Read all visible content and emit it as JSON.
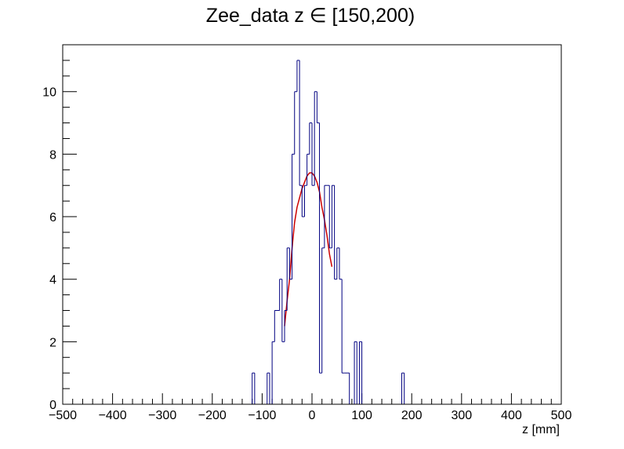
{
  "chart_data": {
    "type": "bar",
    "title": "Zee_data z  ∈ [150,200)",
    "xlabel": "z [mm]",
    "ylabel": "",
    "xlim": [
      -500,
      500
    ],
    "ylim": [
      0,
      11.5
    ],
    "bin_width": 5,
    "x_ticks": [
      -500,
      -400,
      -300,
      -200,
      -100,
      0,
      100,
      200,
      300,
      400,
      500
    ],
    "x_tick_labels": [
      "−500",
      "−400",
      "−300",
      "−200",
      "−100",
      "0",
      "100",
      "200",
      "300",
      "400",
      "500"
    ],
    "y_ticks": [
      0,
      2,
      4,
      6,
      8,
      10
    ],
    "y_tick_labels": [
      "0",
      "2",
      "4",
      "6",
      "8",
      "10"
    ],
    "grid": false,
    "colors": {
      "histogram": "#000080",
      "fit": "#cc0000",
      "axes": "#000000"
    },
    "series": [
      {
        "type": "histogram",
        "bins": [
          {
            "x": -120,
            "y": 1
          },
          {
            "x": -90,
            "y": 1
          },
          {
            "x": -80,
            "y": 2
          },
          {
            "x": -75,
            "y": 3
          },
          {
            "x": -70,
            "y": 3
          },
          {
            "x": -65,
            "y": 4
          },
          {
            "x": -60,
            "y": 2
          },
          {
            "x": -55,
            "y": 3
          },
          {
            "x": -50,
            "y": 5
          },
          {
            "x": -45,
            "y": 4
          },
          {
            "x": -40,
            "y": 8
          },
          {
            "x": -35,
            "y": 10
          },
          {
            "x": -30,
            "y": 11
          },
          {
            "x": -25,
            "y": 7
          },
          {
            "x": -20,
            "y": 6
          },
          {
            "x": -15,
            "y": 7
          },
          {
            "x": -10,
            "y": 8
          },
          {
            "x": -5,
            "y": 9
          },
          {
            "x": 0,
            "y": 7
          },
          {
            "x": 5,
            "y": 10
          },
          {
            "x": 10,
            "y": 9
          },
          {
            "x": 15,
            "y": 1
          },
          {
            "x": 20,
            "y": 5
          },
          {
            "x": 25,
            "y": 7
          },
          {
            "x": 30,
            "y": 7
          },
          {
            "x": 35,
            "y": 5
          },
          {
            "x": 40,
            "y": 7
          },
          {
            "x": 45,
            "y": 4
          },
          {
            "x": 50,
            "y": 5
          },
          {
            "x": 55,
            "y": 4
          },
          {
            "x": 60,
            "y": 1
          },
          {
            "x": 65,
            "y": 1
          },
          {
            "x": 70,
            "y": 1
          },
          {
            "x": 85,
            "y": 2
          },
          {
            "x": 95,
            "y": 2
          },
          {
            "x": 180,
            "y": 1
          }
        ]
      },
      {
        "type": "fit",
        "points": [
          {
            "x": -55,
            "y": 2.5
          },
          {
            "x": -50,
            "y": 3.3
          },
          {
            "x": -45,
            "y": 4.0
          },
          {
            "x": -40,
            "y": 5.0
          },
          {
            "x": -35,
            "y": 5.8
          },
          {
            "x": -30,
            "y": 6.3
          },
          {
            "x": -25,
            "y": 6.6
          },
          {
            "x": -20,
            "y": 6.9
          },
          {
            "x": -15,
            "y": 7.1
          },
          {
            "x": -10,
            "y": 7.3
          },
          {
            "x": -5,
            "y": 7.4
          },
          {
            "x": 0,
            "y": 7.4
          },
          {
            "x": 5,
            "y": 7.3
          },
          {
            "x": 10,
            "y": 7.1
          },
          {
            "x": 15,
            "y": 6.8
          },
          {
            "x": 20,
            "y": 6.3
          },
          {
            "x": 25,
            "y": 5.9
          },
          {
            "x": 30,
            "y": 5.4
          },
          {
            "x": 35,
            "y": 4.8
          },
          {
            "x": 40,
            "y": 4.4
          }
        ]
      }
    ]
  }
}
